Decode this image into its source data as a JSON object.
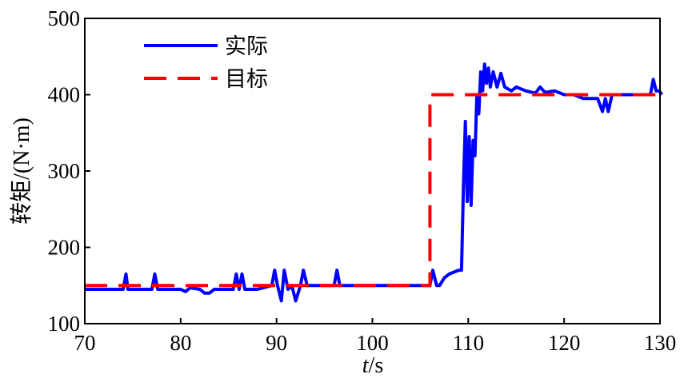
{
  "chart_data": {
    "type": "line",
    "xlabel_italic": "t",
    "xlabel_unit": "/s",
    "ylabel": "转矩/(N·m)",
    "xlim": [
      70,
      130
    ],
    "ylim": [
      100,
      500
    ],
    "xticks": [
      70,
      80,
      90,
      100,
      110,
      120,
      130
    ],
    "yticks": [
      100,
      200,
      300,
      400,
      500
    ],
    "grid": false,
    "legend_position": "top-left",
    "series": [
      {
        "name": "实际",
        "color": "#0000ff",
        "style": "solid",
        "x": [
          70,
          74,
          74.3,
          74.5,
          74.8,
          77,
          77.3,
          77.6,
          78,
          80,
          80.5,
          81,
          82,
          82.5,
          83,
          83.5,
          85,
          85.5,
          85.8,
          86.1,
          86.4,
          86.7,
          88,
          89.5,
          89.8,
          90.1,
          90.5,
          90.8,
          91.2,
          91.6,
          92,
          92.5,
          92.8,
          93.2,
          93.6,
          96,
          96.3,
          96.6,
          97,
          100,
          104,
          106,
          106.3,
          106.7,
          107,
          107.5,
          108,
          109,
          109.3,
          109.5,
          109.7,
          109.9,
          110.1,
          110.3,
          110.5,
          110.7,
          110.9,
          111.1,
          111.3,
          111.5,
          111.7,
          111.9,
          112.1,
          112.3,
          112.6,
          113,
          113.4,
          113.8,
          114.5,
          115,
          116,
          117,
          117.5,
          118,
          119,
          120,
          121,
          122,
          123,
          123.5,
          124,
          124.3,
          124.6,
          125,
          126,
          127,
          128,
          129,
          129.3,
          129.6,
          129.9,
          130.2
        ],
        "values": [
          145,
          145,
          165,
          145,
          145,
          145,
          165,
          145,
          145,
          145,
          142,
          147,
          145,
          140,
          140,
          145,
          145,
          145,
          165,
          145,
          165,
          145,
          145,
          150,
          170,
          150,
          130,
          170,
          145,
          150,
          130,
          150,
          170,
          150,
          150,
          150,
          170,
          150,
          150,
          150,
          150,
          150,
          170,
          150,
          150,
          160,
          165,
          170,
          170,
          280,
          365,
          260,
          345,
          255,
          340,
          320,
          400,
          375,
          430,
          405,
          440,
          415,
          435,
          410,
          430,
          410,
          428,
          410,
          405,
          410,
          405,
          402,
          410,
          403,
          405,
          400,
          400,
          395,
          395,
          395,
          378,
          395,
          378,
          400,
          400,
          400,
          400,
          400,
          420,
          405,
          405,
          400
        ]
      },
      {
        "name": "目标",
        "color": "#ff0000",
        "style": "dashed",
        "x": [
          70,
          106,
          106,
          130
        ],
        "values": [
          150,
          150,
          400,
          400
        ]
      }
    ]
  }
}
